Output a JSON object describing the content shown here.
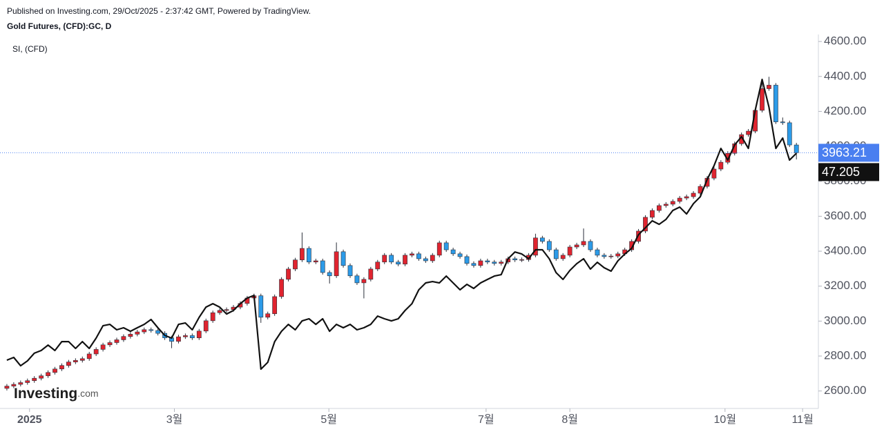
{
  "header": "Published on Investing.com, 29/Oct/2025 - 2:37:42 GMT, Powered by TradingView.",
  "logo": {
    "brand": "Investing",
    "suffix": ".com"
  },
  "chart_data": {
    "type": "candlestick",
    "xlim": [
      -1,
      118.2
    ],
    "ylim": [
      2500,
      4640
    ],
    "y2lim": [
      24.75,
      57.65
    ],
    "yticks": [
      {
        "value": 2600,
        "label": "2600.00"
      },
      {
        "value": 2800,
        "label": "2800.00"
      },
      {
        "value": 3000,
        "label": "3000.00"
      },
      {
        "value": 3200,
        "label": "3200.00"
      },
      {
        "value": 3400,
        "label": "3400.00"
      },
      {
        "value": 3600,
        "label": "3600.00"
      },
      {
        "value": 3800,
        "label": "3800.00"
      },
      {
        "value": 4000,
        "label": "4000.00"
      },
      {
        "value": 4200,
        "label": "4200.00"
      },
      {
        "value": 4400,
        "label": "4400.00"
      },
      {
        "value": 4600,
        "label": "4600.00"
      }
    ],
    "xticks": [
      {
        "value": 3.3,
        "label": "2025"
      },
      {
        "value": 24.4,
        "label": "3월"
      },
      {
        "value": 46.9,
        "label": "5월"
      },
      {
        "value": 69.8,
        "label": "7월"
      },
      {
        "value": 82,
        "label": "8월"
      },
      {
        "value": 104.6,
        "label": "10월"
      },
      {
        "value": 115.9,
        "label": "11월"
      }
    ],
    "grid": false,
    "series": [
      {
        "name": "Gold Futures, (CFD):GC, D",
        "type": "candlestick",
        "up_color": "#e0242f",
        "down_color": "#2c9be8",
        "last_color": "#4a7ff0",
        "open": [
          2615,
          2628,
          2638,
          2648,
          2659,
          2673,
          2687,
          2706,
          2726,
          2746,
          2766,
          2775,
          2785,
          2812,
          2838,
          2864,
          2877,
          2893,
          2912,
          2925,
          2938,
          2951,
          2946,
          2930,
          2904,
          2884,
          2910,
          2917,
          2904,
          2943,
          3002,
          3048,
          3061,
          3066,
          3080,
          3101,
          3132,
          3145,
          3022,
          3042,
          3140,
          3239,
          3298,
          3350,
          3416,
          3338,
          3345,
          3278,
          3259,
          3397,
          3318,
          3259,
          3219,
          3239,
          3298,
          3338,
          3377,
          3338,
          3326,
          3377,
          3385,
          3357,
          3345,
          3377,
          3448,
          3408,
          3385,
          3369,
          3330,
          3318,
          3345,
          3338,
          3330,
          3338,
          3357,
          3350,
          3352,
          3377,
          3476,
          3456,
          3408,
          3357,
          3377,
          3424,
          3436,
          3456,
          3408,
          3377,
          3369,
          3372,
          3385,
          3408,
          3456,
          3515,
          3594,
          3633,
          3661,
          3669,
          3685,
          3704,
          3712,
          3732,
          3771,
          3818,
          3870,
          3909,
          3960,
          4015,
          4067,
          4087,
          4206,
          4330,
          4350,
          4140,
          4135,
          4008
        ],
        "high": [
          2640,
          2650,
          2660,
          2671,
          2685,
          2699,
          2718,
          2738,
          2758,
          2778,
          2787,
          2797,
          2824,
          2850,
          2876,
          2889,
          2905,
          2924,
          2937,
          2950,
          2963,
          2963,
          2958,
          2942,
          2916,
          2922,
          2929,
          2929,
          2955,
          3014,
          3060,
          3073,
          3078,
          3092,
          3113,
          3144,
          3157,
          3157,
          3054,
          3152,
          3251,
          3310,
          3362,
          3507,
          3428,
          3357,
          3357,
          3290,
          3450,
          3409,
          3330,
          3271,
          3251,
          3310,
          3350,
          3389,
          3389,
          3350,
          3389,
          3397,
          3397,
          3369,
          3389,
          3460,
          3460,
          3420,
          3397,
          3381,
          3342,
          3357,
          3357,
          3350,
          3350,
          3369,
          3369,
          3364,
          3389,
          3500,
          3488,
          3468,
          3420,
          3389,
          3436,
          3448,
          3530,
          3468,
          3420,
          3389,
          3384,
          3397,
          3420,
          3468,
          3527,
          3606,
          3645,
          3673,
          3681,
          3697,
          3716,
          3724,
          3744,
          3783,
          3830,
          3882,
          3921,
          3972,
          4027,
          4079,
          4099,
          4218,
          4380,
          4398,
          4362,
          4165,
          4147,
          4020
        ],
        "low": [
          2603,
          2616,
          2626,
          2636,
          2647,
          2661,
          2675,
          2694,
          2714,
          2734,
          2754,
          2763,
          2773,
          2800,
          2826,
          2852,
          2865,
          2881,
          2900,
          2913,
          2926,
          2934,
          2918,
          2892,
          2845,
          2872,
          2898,
          2892,
          2892,
          2931,
          2990,
          3036,
          3049,
          3054,
          3068,
          3089,
          3120,
          2990,
          3010,
          3030,
          3128,
          3227,
          3286,
          3338,
          3326,
          3326,
          3266,
          3215,
          3247,
          3306,
          3247,
          3207,
          3130,
          3227,
          3286,
          3326,
          3326,
          3314,
          3314,
          3365,
          3345,
          3333,
          3333,
          3365,
          3396,
          3373,
          3357,
          3318,
          3306,
          3306,
          3326,
          3318,
          3318,
          3326,
          3338,
          3338,
          3340,
          3365,
          3444,
          3396,
          3345,
          3345,
          3365,
          3412,
          3424,
          3396,
          3365,
          3357,
          3357,
          3360,
          3373,
          3396,
          3444,
          3503,
          3582,
          3621,
          3649,
          3657,
          3673,
          3692,
          3700,
          3720,
          3759,
          3806,
          3858,
          3897,
          3948,
          4003,
          4055,
          4075,
          4194,
          4318,
          4128,
          4123,
          3996,
          3925
        ],
        "close": [
          2628,
          2638,
          2648,
          2659,
          2673,
          2687,
          2706,
          2726,
          2746,
          2766,
          2775,
          2785,
          2812,
          2838,
          2864,
          2877,
          2893,
          2912,
          2925,
          2938,
          2951,
          2946,
          2930,
          2904,
          2884,
          2910,
          2917,
          2904,
          2943,
          3002,
          3048,
          3061,
          3066,
          3080,
          3101,
          3132,
          3145,
          3022,
          3042,
          3140,
          3239,
          3298,
          3350,
          3416,
          3338,
          3345,
          3278,
          3259,
          3397,
          3318,
          3259,
          3219,
          3239,
          3298,
          3338,
          3377,
          3338,
          3326,
          3377,
          3385,
          3357,
          3345,
          3377,
          3448,
          3408,
          3385,
          3369,
          3330,
          3318,
          3345,
          3338,
          3330,
          3338,
          3357,
          3350,
          3352,
          3377,
          3476,
          3456,
          3408,
          3357,
          3377,
          3424,
          3436,
          3456,
          3408,
          3377,
          3369,
          3372,
          3385,
          3408,
          3456,
          3515,
          3594,
          3633,
          3661,
          3669,
          3685,
          3704,
          3712,
          3732,
          3771,
          3818,
          3870,
          3909,
          3960,
          4015,
          4067,
          4087,
          4206,
          4330,
          4350,
          4140,
          4135,
          4008,
          3963.21
        ]
      },
      {
        "name": "SI, (CFD)",
        "type": "line",
        "axis": "y2",
        "color": "#111111",
        "values": [
          29.0,
          29.24,
          28.51,
          28.94,
          29.61,
          29.85,
          30.33,
          29.85,
          30.63,
          30.63,
          30.03,
          30.63,
          30.03,
          30.94,
          32.03,
          32.15,
          31.67,
          31.85,
          31.54,
          31.85,
          32.15,
          32.58,
          31.85,
          31.18,
          30.94,
          32.15,
          32.27,
          31.67,
          32.76,
          33.67,
          33.97,
          33.67,
          33.06,
          33.37,
          33.97,
          34.46,
          34.7,
          28.21,
          28.81,
          30.63,
          31.54,
          32.15,
          31.67,
          32.45,
          32.64,
          32.15,
          32.64,
          31.54,
          32.15,
          31.85,
          32.15,
          31.67,
          31.85,
          32.15,
          32.88,
          32.64,
          32.45,
          32.64,
          33.37,
          33.97,
          35.19,
          35.8,
          35.91,
          35.8,
          36.4,
          35.8,
          35.19,
          35.67,
          35.31,
          35.8,
          36.1,
          36.4,
          36.52,
          37.92,
          38.52,
          38.34,
          37.92,
          38.71,
          38.71,
          37.92,
          36.7,
          36.1,
          36.89,
          37.49,
          37.92,
          37.01,
          37.61,
          37.13,
          36.83,
          37.74,
          38.34,
          38.83,
          40.04,
          40.65,
          41.26,
          40.95,
          41.38,
          42.17,
          42.47,
          41.86,
          42.77,
          43.38,
          44.9,
          46.11,
          47.63,
          46.6,
          47.93,
          48.66,
          47.63,
          50.97,
          53.7,
          51.27,
          47.63,
          48.54,
          46.6,
          47.205
        ]
      }
    ]
  }
}
